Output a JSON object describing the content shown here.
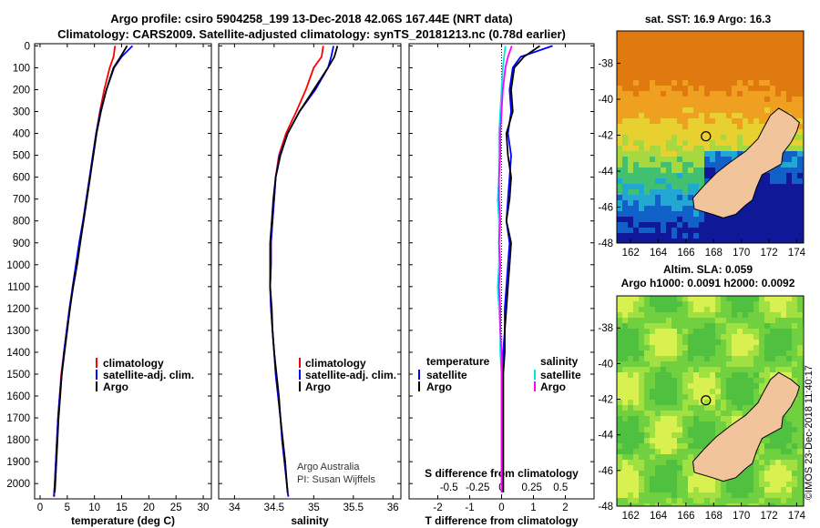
{
  "header": {
    "line1": "Argo profile: csiro 5904258_199 13-Dec-2018 42.06S 167.44E (NRT data)",
    "line2": "Climatology: CARS2009. Satellite-adjusted climatology: synTS_20181213.nc (0.78d earlier)"
  },
  "colors": {
    "climatology": "#ff0000",
    "satellite": "#0000ff",
    "argo": "#000000",
    "salinity_satellite": "#00e5e5",
    "salinity_argo": "#ff00ff",
    "land": "#f2c49c"
  },
  "depth_axis": {
    "ticks": [
      "0",
      "100",
      "200",
      "300",
      "400",
      "500",
      "600",
      "700",
      "800",
      "900",
      "1000",
      "1100",
      "1200",
      "1300",
      "1400",
      "1500",
      "1600",
      "1700",
      "1800",
      "1900",
      "2000"
    ]
  },
  "legend": {
    "climatology": "climatology",
    "satellite_adj": "satellite-adj. clim.",
    "argo": "Argo",
    "temperature": "temperature",
    "salinity": "salinity",
    "satellite": "satellite"
  },
  "credit": {
    "line1": "Argo Australia",
    "line2": "PI: Susan Wijffels"
  },
  "chart_data": [
    {
      "type": "line",
      "name": "temperature profile",
      "xlabel": "temperature (deg C)",
      "ylabel": "depth",
      "xlim": [
        -1,
        31.5
      ],
      "ylim": [
        2070,
        -10
      ],
      "xticks": [
        "0",
        "5",
        "10",
        "15",
        "20",
        "25",
        "30"
      ],
      "series": [
        {
          "name": "climatology",
          "x": [
            13.8,
            13.5,
            12.8,
            11.8,
            11.0,
            10.3,
            9.7,
            9.2,
            8.6,
            8.0,
            7.3,
            6.6,
            6.0,
            5.5,
            4.9,
            4.4,
            3.9,
            3.6,
            3.3,
            3.1,
            2.9,
            2.7,
            2.6,
            2.5
          ],
          "y": [
            0,
            50,
            100,
            200,
            300,
            400,
            500,
            600,
            700,
            800,
            900,
            1000,
            1100,
            1200,
            1300,
            1400,
            1500,
            1600,
            1700,
            1800,
            1900,
            2000,
            2040,
            2060
          ]
        },
        {
          "name": "satellite-adj. clim.",
          "x": [
            17.0,
            15.0,
            13.6,
            12.2,
            11.1,
            10.3,
            9.7,
            9.1,
            8.5,
            7.9,
            7.2,
            6.6,
            6.0,
            5.4,
            4.9,
            4.4,
            4.0,
            3.6,
            3.3,
            3.1,
            2.9,
            2.7,
            2.6,
            2.6
          ],
          "y": [
            0,
            50,
            100,
            200,
            300,
            400,
            500,
            600,
            700,
            800,
            900,
            1000,
            1100,
            1200,
            1300,
            1400,
            1500,
            1600,
            1700,
            1800,
            1900,
            2000,
            2040,
            2060
          ]
        },
        {
          "name": "Argo",
          "x": [
            16.0,
            14.8,
            13.5,
            12.2,
            11.2,
            10.4,
            9.8,
            9.2,
            8.6,
            8.0,
            7.4,
            6.8,
            6.1,
            5.5,
            5.0,
            4.5,
            4.0,
            3.7,
            3.4,
            3.2,
            3.0,
            2.8,
            2.7
          ],
          "y": [
            0,
            50,
            100,
            200,
            300,
            400,
            500,
            600,
            700,
            800,
            900,
            1000,
            1100,
            1200,
            1300,
            1400,
            1500,
            1600,
            1700,
            1800,
            1900,
            2000,
            2040
          ]
        }
      ]
    },
    {
      "type": "line",
      "name": "salinity profile",
      "xlabel": "salinity",
      "ylabel": "depth",
      "xlim": [
        33.8,
        36.1
      ],
      "ylim": [
        2070,
        -10
      ],
      "xticks": [
        "34",
        "34.5",
        "35",
        "35.5",
        "36"
      ],
      "series": [
        {
          "name": "climatology",
          "x": [
            35.12,
            35.1,
            35.0,
            34.9,
            34.78,
            34.65,
            34.56,
            34.52,
            34.5,
            34.48,
            34.46,
            34.46,
            34.45,
            34.46,
            34.48,
            34.5,
            34.52,
            34.55,
            34.58,
            34.6,
            34.63,
            34.66,
            34.67,
            34.68
          ],
          "y": [
            0,
            50,
            100,
            200,
            300,
            400,
            500,
            600,
            700,
            800,
            900,
            1000,
            1100,
            1200,
            1300,
            1400,
            1500,
            1600,
            1700,
            1800,
            1900,
            2000,
            2040,
            2060
          ]
        },
        {
          "name": "satellite-adj. clim.",
          "x": [
            35.25,
            35.22,
            35.18,
            35.02,
            34.82,
            34.67,
            34.57,
            34.52,
            34.5,
            34.48,
            34.46,
            34.46,
            34.45,
            34.46,
            34.48,
            34.5,
            34.52,
            34.55,
            34.58,
            34.6,
            34.63,
            34.66,
            34.67,
            34.68
          ],
          "y": [
            0,
            50,
            100,
            200,
            300,
            400,
            500,
            600,
            700,
            800,
            900,
            1000,
            1100,
            1200,
            1300,
            1400,
            1500,
            1600,
            1700,
            1800,
            1900,
            2000,
            2040,
            2060
          ]
        },
        {
          "name": "Argo",
          "x": [
            35.3,
            35.26,
            35.18,
            35.0,
            34.82,
            34.67,
            34.58,
            34.52,
            34.49,
            34.47,
            34.45,
            34.45,
            34.45,
            34.47,
            34.48,
            34.5,
            34.53,
            34.56,
            34.58,
            34.61,
            34.64,
            34.66,
            34.67
          ],
          "y": [
            0,
            50,
            100,
            200,
            300,
            400,
            500,
            600,
            700,
            800,
            900,
            1000,
            1100,
            1200,
            1300,
            1400,
            1500,
            1600,
            1700,
            1800,
            1900,
            2000,
            2040
          ]
        }
      ]
    },
    {
      "type": "line",
      "name": "difference from climatology",
      "xlabel": "T difference from climatology",
      "xlabel_top": "S difference from climatology",
      "xlim": [
        -2.9,
        2.9
      ],
      "ylim": [
        2070,
        -10
      ],
      "xticks": [
        "-2",
        "-1",
        "0",
        "1",
        "2"
      ],
      "s_xticks": [
        "-0.5",
        "-0.25",
        "0",
        "0.25",
        "0.5"
      ],
      "series": [
        {
          "name": "temperature satellite",
          "x": [
            1.6,
            0.6,
            0.35,
            0.25,
            0.3,
            0.2,
            0.3,
            0.25,
            0.2,
            0.15,
            0.25,
            0.2,
            0.15,
            0.1,
            0.1,
            0.05,
            0.05,
            0.05,
            0.05,
            0.05,
            0.05,
            0.05,
            0.05
          ],
          "y": [
            0,
            50,
            100,
            200,
            300,
            400,
            500,
            600,
            700,
            800,
            900,
            1000,
            1100,
            1200,
            1300,
            1400,
            1500,
            1600,
            1700,
            1800,
            1900,
            2000,
            2040
          ]
        },
        {
          "name": "temperature Argo",
          "x": [
            1.2,
            0.7,
            0.4,
            0.3,
            0.35,
            0.15,
            0.2,
            0.3,
            0.25,
            0.15,
            0.3,
            0.25,
            0.2,
            0.15,
            0.1,
            0.1,
            0.05,
            0.05,
            0.05,
            0.05,
            0.05,
            0.05,
            0.05
          ],
          "y": [
            0,
            50,
            100,
            200,
            300,
            400,
            500,
            600,
            700,
            800,
            900,
            1000,
            1100,
            1200,
            1300,
            1400,
            1500,
            1600,
            1700,
            1800,
            1900,
            2000,
            2040
          ]
        },
        {
          "name": "salinity satellite",
          "x": [
            0.03,
            0.02,
            0.01,
            0.0,
            -0.01,
            -0.02,
            -0.02,
            -0.02,
            -0.03,
            -0.02,
            -0.02,
            -0.02,
            -0.03,
            -0.02,
            -0.01,
            -0.01,
            0.0,
            0.0,
            0.0,
            0.0,
            0.0,
            0.0,
            0.0
          ],
          "y": [
            0,
            50,
            100,
            200,
            300,
            400,
            500,
            600,
            700,
            800,
            900,
            1000,
            1100,
            1200,
            1300,
            1400,
            1500,
            1600,
            1700,
            1800,
            1900,
            2000,
            2040
          ]
        },
        {
          "name": "salinity Argo",
          "x": [
            0.08,
            0.05,
            0.03,
            0.01,
            0.0,
            -0.01,
            -0.01,
            -0.02,
            -0.02,
            -0.01,
            -0.02,
            -0.01,
            -0.02,
            -0.01,
            -0.01,
            0.0,
            0.0,
            0.0,
            0.0,
            0.0,
            0.0,
            0.0,
            0.0
          ],
          "y": [
            0,
            50,
            100,
            200,
            300,
            400,
            500,
            600,
            700,
            800,
            900,
            1000,
            1100,
            1200,
            1300,
            1400,
            1500,
            1600,
            1700,
            1800,
            1900,
            2000,
            2040
          ]
        }
      ]
    },
    {
      "type": "heatmap",
      "name": "satellite SST map",
      "title": "sat. SST: 16.9 Argo: 16.3",
      "xlim": [
        161,
        174.5
      ],
      "ylim": [
        -48,
        -36.2
      ],
      "xticks": [
        "162",
        "164",
        "166",
        "168",
        "170",
        "172",
        "174"
      ],
      "yticks": [
        "-38",
        "-40",
        "-42",
        "-44",
        "-46",
        "-48"
      ],
      "argo_position": {
        "lon": 167.44,
        "lat": -42.06
      }
    },
    {
      "type": "heatmap",
      "name": "altimetry sea level anomaly map",
      "title": "Altim. SLA: 0.059",
      "subtitle": "Argo h1000: 0.0091 h2000: 0.0092",
      "xlim": [
        161,
        174.5
      ],
      "ylim": [
        -48,
        -36.2
      ],
      "xticks": [
        "162",
        "164",
        "166",
        "168",
        "170",
        "172",
        "174"
      ],
      "yticks": [
        "-38",
        "-40",
        "-42",
        "-44",
        "-46",
        "-48"
      ],
      "argo_position": {
        "lon": 167.44,
        "lat": -42.06
      }
    }
  ],
  "footer": {
    "vertical_stamp": "©IMOS 23-Dec-2018 11:40:17"
  }
}
